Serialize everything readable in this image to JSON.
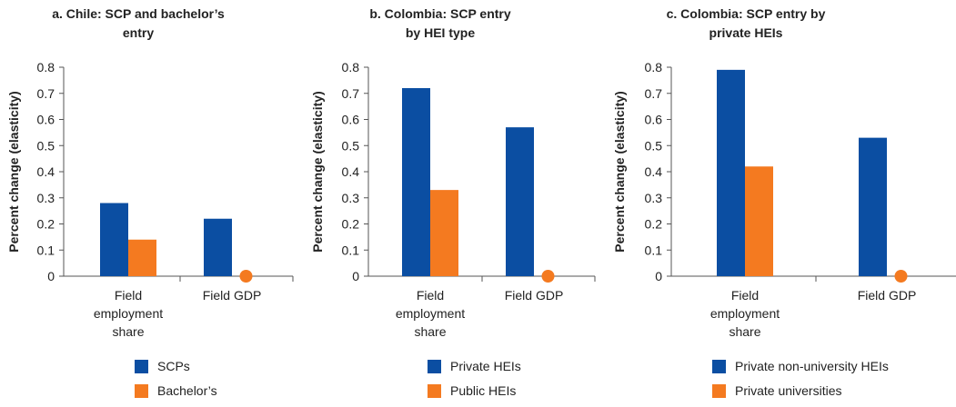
{
  "colors": {
    "series1": "#0b4ea2",
    "series2": "#f47a20",
    "axis": "#555555"
  },
  "chart_data": [
    {
      "type": "bar",
      "title": "a. Chile: SCP and bachelor’s entry",
      "title_lines": [
        "a. Chile: SCP and bachelor’s",
        "entry"
      ],
      "ylabel": "Percent change (elasticity)",
      "ylim": [
        0,
        0.8
      ],
      "yticks": [
        "0",
        "0.1",
        "0.2",
        "0.3",
        "0.4",
        "0.5",
        "0.6",
        "0.7",
        "0.8"
      ],
      "categories": [
        "Field employment share",
        "Field GDP"
      ],
      "category_lines": [
        [
          "Field",
          "employment",
          "share"
        ],
        [
          "Field GDP"
        ]
      ],
      "series": [
        {
          "name": "SCPs",
          "values": [
            0.28,
            0.22
          ]
        },
        {
          "name": "Bachelor’s",
          "values": [
            0.14,
            0
          ]
        }
      ]
    },
    {
      "type": "bar",
      "title": "b. Colombia: SCP entry by HEI type",
      "title_lines": [
        "b. Colombia: SCP entry",
        "by HEI type"
      ],
      "ylabel": "Percent change (elasticity)",
      "ylim": [
        0,
        0.8
      ],
      "yticks": [
        "0",
        "0.1",
        "0.2",
        "0.3",
        "0.4",
        "0.5",
        "0.6",
        "0.7",
        "0.8"
      ],
      "categories": [
        "Field employment share",
        "Field GDP"
      ],
      "category_lines": [
        [
          "Field",
          "employment",
          "share"
        ],
        [
          "Field GDP"
        ]
      ],
      "series": [
        {
          "name": "Private HEIs",
          "values": [
            0.72,
            0.57
          ]
        },
        {
          "name": "Public HEIs",
          "values": [
            0.33,
            0
          ]
        }
      ]
    },
    {
      "type": "bar",
      "title": "c. Colombia: SCP entry by private HEIs",
      "title_lines": [
        "c. Colombia: SCP entry by",
        "private HEIs"
      ],
      "ylabel": "Percent change (elasticity)",
      "ylim": [
        0,
        0.8
      ],
      "yticks": [
        "0",
        "0.1",
        "0.2",
        "0.3",
        "0.4",
        "0.5",
        "0.6",
        "0.7",
        "0.8"
      ],
      "categories": [
        "Field employment share",
        "Field GDP"
      ],
      "category_lines": [
        [
          "Field",
          "employment",
          "share"
        ],
        [
          "Field GDP"
        ]
      ],
      "series": [
        {
          "name": "Private non-university HEIs",
          "values": [
            0.79,
            0.53
          ]
        },
        {
          "name": "Private universities",
          "values": [
            0.42,
            0
          ]
        }
      ]
    }
  ]
}
